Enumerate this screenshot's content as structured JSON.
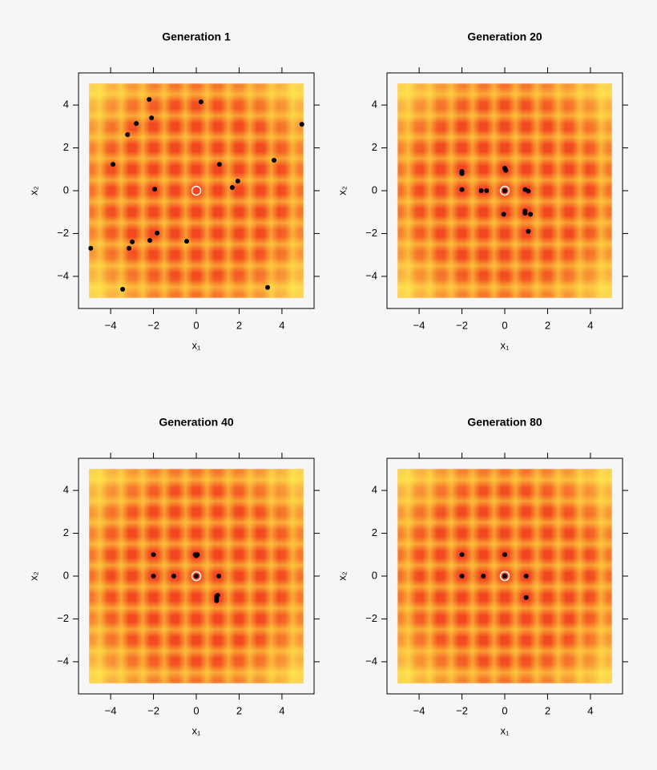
{
  "chart_data": [
    {
      "type": "scatter",
      "title": "Generation 1",
      "xlabel": "x₁",
      "ylabel": "x₂",
      "x": [
        -2.2,
        0.22,
        -2.09,
        -2.8,
        -3.21,
        4.93,
        -3.89,
        1.08,
        3.63,
        1.94,
        1.68,
        -1.94,
        -1.83,
        -4.93,
        -2.99,
        -3.14,
        -2.17,
        -0.45,
        -3.44,
        3.33
      ],
      "values": [
        4.26,
        4.15,
        3.4,
        3.14,
        2.62,
        3.1,
        1.23,
        1.23,
        1.42,
        0.45,
        0.15,
        0.07,
        -1.98,
        -2.69,
        -2.39,
        -2.69,
        -2.32,
        -2.36,
        -4.6,
        -4.52
      ],
      "color": "#000000",
      "optimum_x": 0,
      "optimum_y": 0,
      "domain": [
        -5,
        5
      ],
      "xlim": [
        -5.5,
        5.5
      ],
      "ylim": [
        -5.5,
        5.5
      ],
      "xticks": [
        {
          "value": -4,
          "label": "−4"
        },
        {
          "value": -2,
          "label": "−2"
        },
        0,
        2,
        4
      ],
      "yticks": [
        {
          "value": -4,
          "label": "−4"
        },
        {
          "value": -2,
          "label": "−2"
        },
        0,
        2,
        4
      ]
    },
    {
      "type": "scatter",
      "title": "Generation 20",
      "xlabel": "x₁",
      "ylabel": "x₂",
      "x": [
        -2,
        -2,
        -2,
        -1.1,
        -0.85,
        0,
        0.05,
        0,
        0.95,
        1.1,
        -0.05,
        0.95,
        0.95,
        1.2,
        1.1
      ],
      "values": [
        0.9,
        0.8,
        0.05,
        0,
        0,
        1.05,
        0.95,
        0,
        0.05,
        -0.02,
        -1.1,
        -0.95,
        -1.05,
        -1.1,
        -1.9
      ],
      "color": "#000000",
      "optimum_x": 0,
      "optimum_y": 0,
      "domain": [
        -5,
        5
      ],
      "xlim": [
        -5.5,
        5.5
      ],
      "ylim": [
        -5.5,
        5.5
      ],
      "xticks": [
        {
          "value": -4,
          "label": "−4"
        },
        {
          "value": -2,
          "label": "−2"
        },
        0,
        2,
        4
      ],
      "yticks": [
        {
          "value": -4,
          "label": "−4"
        },
        {
          "value": -2,
          "label": "−2"
        },
        0,
        2,
        4
      ]
    },
    {
      "type": "scatter",
      "title": "Generation 40",
      "xlabel": "x₁",
      "ylabel": "x₂",
      "x": [
        -2,
        -2,
        -1.05,
        0,
        0,
        0.05,
        -0.05,
        1.05,
        0.95,
        0.95,
        0.95,
        1
      ],
      "values": [
        1,
        0,
        0,
        0,
        0.95,
        1,
        1,
        0,
        -0.95,
        -1.05,
        -1.15,
        -0.9
      ],
      "color": "#000000",
      "optimum_x": 0,
      "optimum_y": 0,
      "domain": [
        -5,
        5
      ],
      "xlim": [
        -5.5,
        5.5
      ],
      "ylim": [
        -5.5,
        5.5
      ],
      "xticks": [
        {
          "value": -4,
          "label": "−4"
        },
        {
          "value": -2,
          "label": "−2"
        },
        0,
        2,
        4
      ],
      "yticks": [
        {
          "value": -4,
          "label": "−4"
        },
        {
          "value": -2,
          "label": "−2"
        },
        0,
        2,
        4
      ]
    },
    {
      "type": "scatter",
      "title": "Generation 80",
      "xlabel": "x₁",
      "ylabel": "x₂",
      "x": [
        -2,
        -2,
        -1,
        0,
        0,
        1,
        1
      ],
      "values": [
        1,
        0,
        0,
        0,
        1,
        0,
        -1
      ],
      "color": "#000000",
      "optimum_x": 0,
      "optimum_y": 0,
      "domain": [
        -5,
        5
      ],
      "xlim": [
        -5.5,
        5.5
      ],
      "ylim": [
        -5.5,
        5.5
      ],
      "xticks": [
        {
          "value": -4,
          "label": "−4"
        },
        {
          "value": -2,
          "label": "−2"
        },
        0,
        2,
        4
      ],
      "yticks": [
        {
          "value": -4,
          "label": "−4"
        },
        {
          "value": -2,
          "label": "−2"
        },
        0,
        2,
        4
      ]
    }
  ]
}
